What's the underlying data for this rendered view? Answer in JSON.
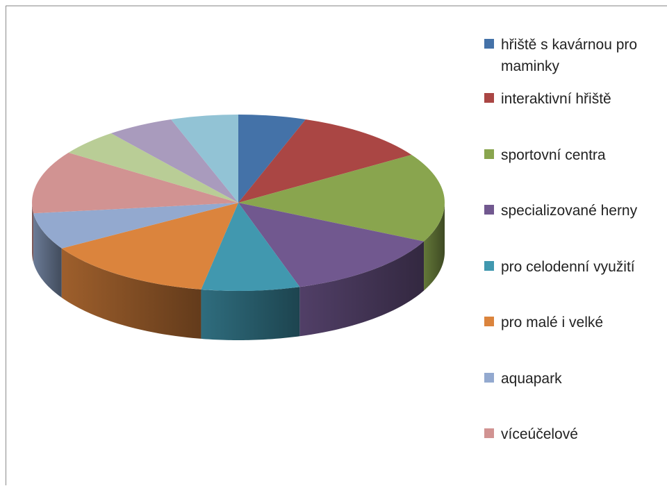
{
  "chart_data": {
    "type": "pie",
    "style": "3d",
    "title": "",
    "legend_position": "right",
    "series": [
      {
        "label": "hřiště s kavárnou pro maminky",
        "value": 5.5,
        "color": "#4472A8"
      },
      {
        "label": "interaktivní hřiště",
        "value": 11,
        "color": "#AA4644"
      },
      {
        "label": "sportovní centra",
        "value": 17,
        "color": "#89A54E"
      },
      {
        "label": "specializované herny",
        "value": 13.5,
        "color": "#71588F"
      },
      {
        "label": "pro celodenní využití",
        "value": 8,
        "color": "#4198AF"
      },
      {
        "label": "pro malé i velké",
        "value": 14,
        "color": "#DB843D"
      },
      {
        "label": "aquapark",
        "value": 7,
        "color": "#93A9CF"
      },
      {
        "label": "víceúčelové",
        "value": 12,
        "color": "#D19392"
      },
      {
        "label": "",
        "value": 5,
        "color": "#B9CD96"
      },
      {
        "label": "",
        "value": 5.5,
        "color": "#A99BBD"
      },
      {
        "label": "",
        "value": 5.5,
        "color": "#92C3D5"
      }
    ]
  }
}
